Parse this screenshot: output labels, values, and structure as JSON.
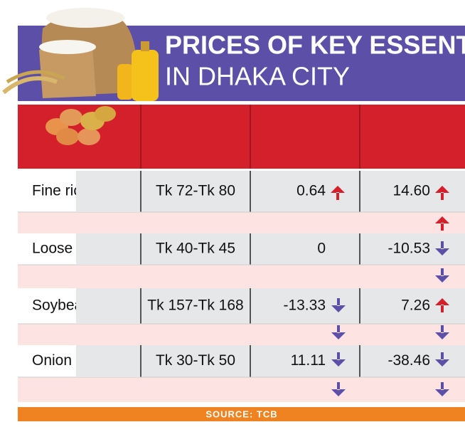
{
  "header": {
    "title": "PRICES OF KEY ESSENTIALS",
    "subtitle": "IN DHAKA CITY"
  },
  "table": {
    "rows": [
      [
        "Fine ric",
        "Tk 72-Tk 80",
        "0.64",
        "14.60"
      ],
      [
        "Loose fl",
        "Tk 40-Tk 45",
        "0",
        "-10.53"
      ],
      [
        "Soybea",
        "Tk 157-Tk 168",
        "-13.33",
        "7.26"
      ],
      [
        "Onion (",
        "Tk 30-Tk 50",
        "11.11",
        "-38.46"
      ]
    ]
  },
  "source": "SOURCE: TCB"
}
